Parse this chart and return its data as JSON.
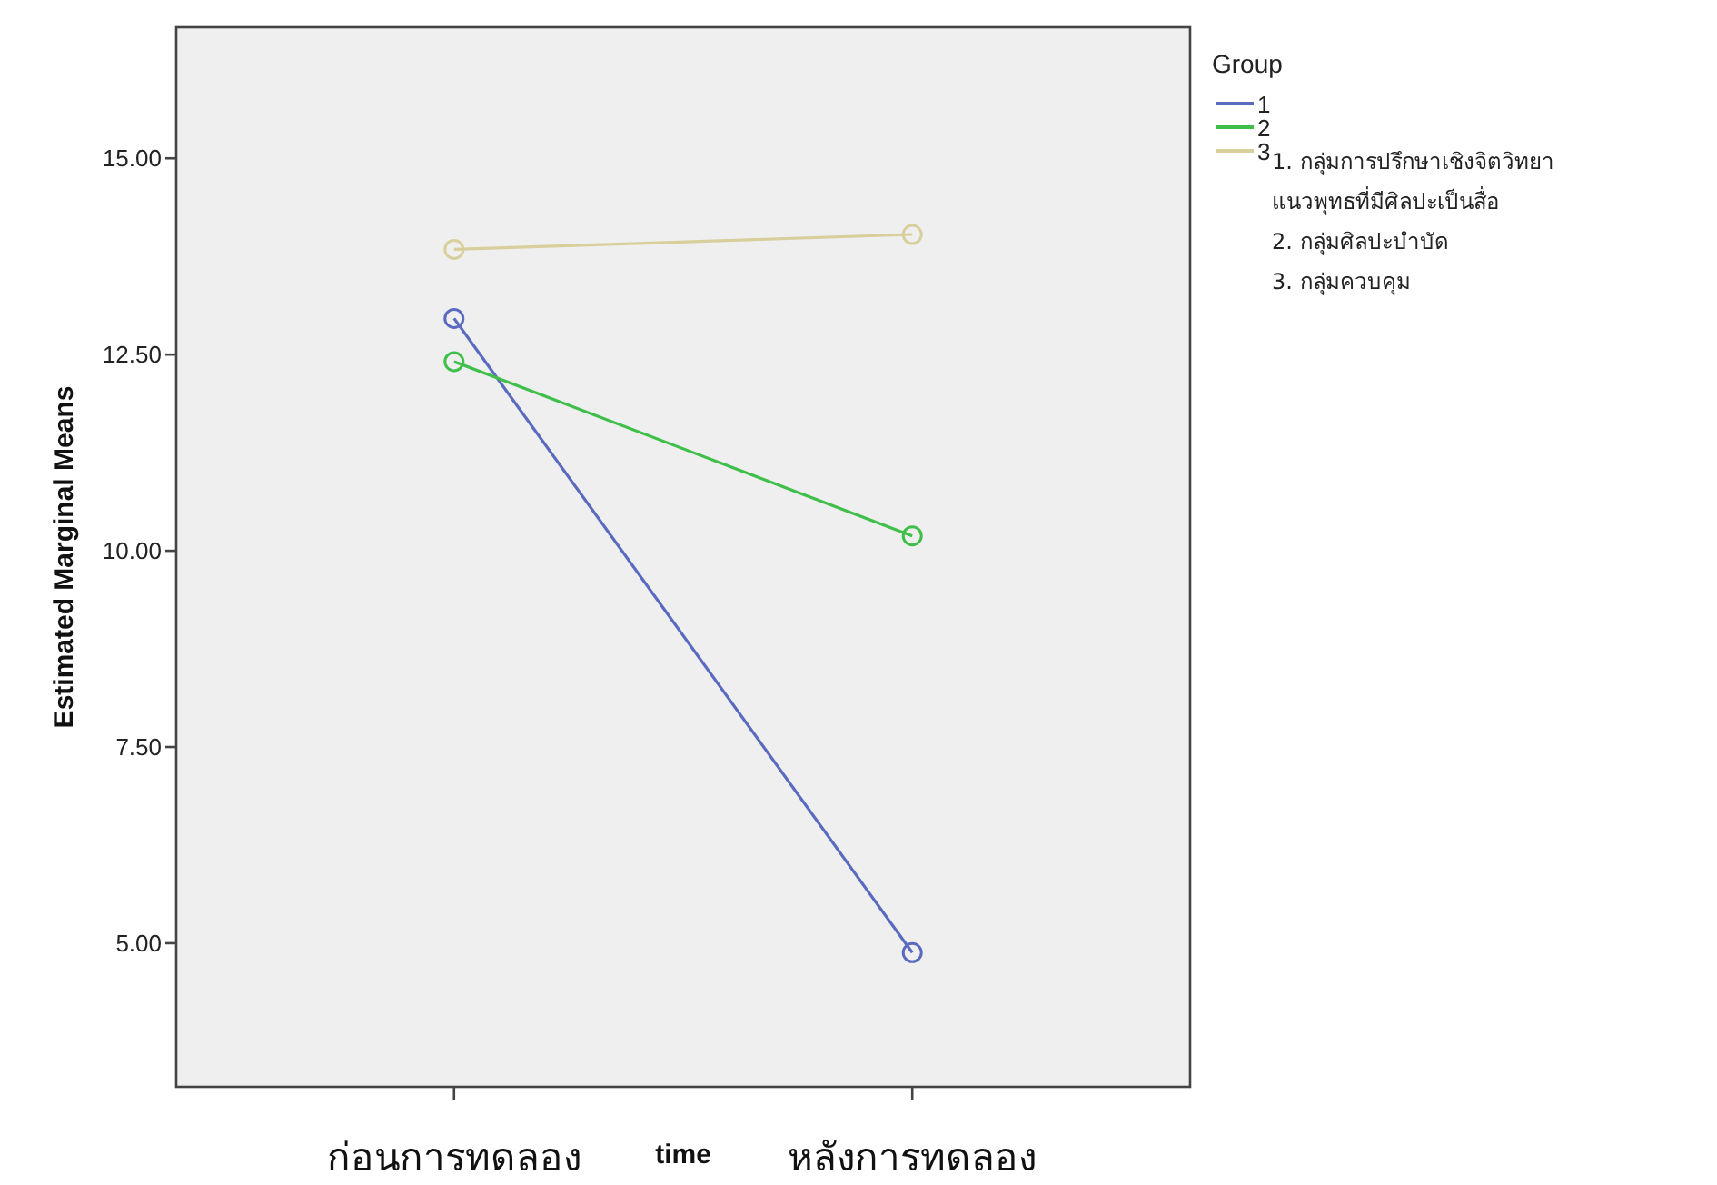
{
  "chart_data": {
    "type": "line",
    "ylabel": "Estimated Marginal Means",
    "xlabel": "time",
    "legend_title": "Group",
    "categories": [
      "ก่อนการทดลอง",
      "หลังการทดลอง"
    ],
    "series": [
      {
        "name": "1",
        "color": "#5a6abf",
        "values": [
          12.96,
          4.88
        ]
      },
      {
        "name": "2",
        "color": "#3fbf4a",
        "values": [
          12.41,
          10.19
        ]
      },
      {
        "name": "3",
        "color": "#d8cf9c",
        "values": [
          13.84,
          14.03
        ]
      }
    ],
    "ylim": [
      3.17,
      16.67
    ],
    "yticks": [
      {
        "value": 5,
        "label": "5.00"
      },
      {
        "value": 7.5,
        "label": "7.50"
      },
      {
        "value": 10,
        "label": "10.00"
      },
      {
        "value": 12.5,
        "label": "12.50"
      },
      {
        "value": 15,
        "label": "15.00"
      }
    ],
    "marker": "circle",
    "line_style": "solid",
    "grid": false,
    "legend": "right",
    "annotations": [
      "1. กลุ่มการปรึกษาเชิงจิตวิทยาแนวพุทธที่มีศิลปะเป็นสื่อ",
      "2. กลุ่มศิลปะบำบัด",
      "3. กลุ่มควบคุม"
    ]
  }
}
